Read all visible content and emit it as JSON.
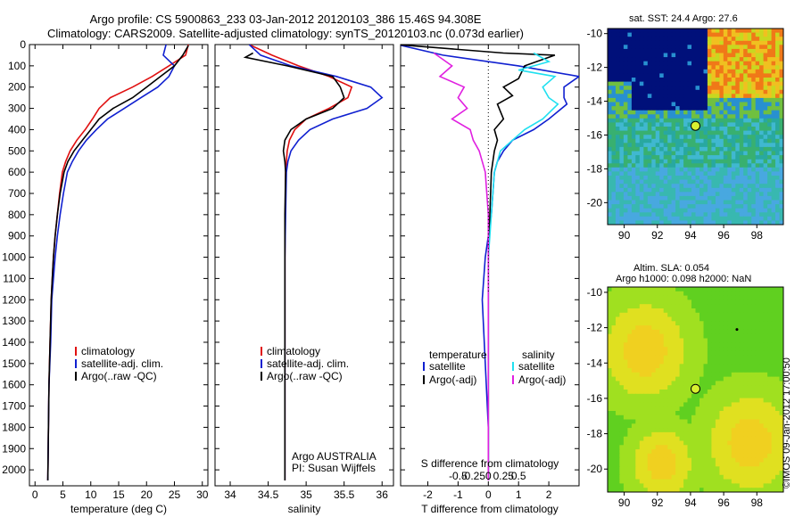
{
  "header": {
    "line1": "Argo profile: CS 5900863_233 03-Jan-2012 20120103_386 15.46S 94.308E",
    "line2": "Climatology: CARS2009. Satellite-adjusted climatology: synTS_20120103.nc (0.073d earlier)"
  },
  "colors": {
    "climatology": "#e01010",
    "satellite": "#1020d0",
    "argo": "#000000",
    "satellite_s": "#20e0f0",
    "argo_s": "#e020e0"
  },
  "chart_data": [
    {
      "type": "line",
      "name": "temperature-profile",
      "xlabel": "temperature (deg C)",
      "xlim": [
        -1,
        31
      ],
      "ylim": [
        2075,
        0
      ],
      "xticks": [
        0,
        5,
        10,
        15,
        20,
        25,
        30
      ],
      "yticks": [
        0,
        100,
        200,
        300,
        400,
        500,
        600,
        700,
        800,
        900,
        1000,
        1100,
        1200,
        1300,
        1400,
        1500,
        1600,
        1700,
        1800,
        1900,
        2000
      ],
      "legend": [
        "climatology",
        "satellite-adj. clim.",
        "Argo(..raw -QC)"
      ],
      "series": [
        {
          "name": "climatology",
          "color": "#e01010",
          "x": [
            27.5,
            27.0,
            24.0,
            21.0,
            17.5,
            13.5,
            11.5,
            10.3,
            9.0,
            7.5,
            6.3,
            5.5,
            4.9,
            4.4,
            4.0,
            3.6,
            3.3,
            3.1,
            2.9,
            2.7,
            2.5,
            2.4,
            2.3
          ],
          "y": [
            0,
            50,
            100,
            150,
            200,
            250,
            300,
            350,
            400,
            450,
            500,
            550,
            600,
            700,
            800,
            900,
            1000,
            1100,
            1200,
            1400,
            1600,
            1800,
            2050
          ]
        },
        {
          "name": "satellite-adj. clim.",
          "color": "#1020d0",
          "x": [
            23.5,
            23.0,
            25.0,
            24.0,
            22.0,
            19.0,
            16.0,
            13.0,
            11.0,
            9.2,
            7.8,
            6.7,
            5.8,
            5.1,
            4.5,
            4.0,
            3.6,
            3.3,
            3.0,
            2.8,
            2.5,
            2.4,
            2.3
          ],
          "y": [
            0,
            50,
            100,
            150,
            200,
            250,
            300,
            350,
            400,
            450,
            500,
            550,
            600,
            700,
            800,
            900,
            1000,
            1100,
            1200,
            1400,
            1600,
            1800,
            2050
          ]
        },
        {
          "name": "Argo(..raw -QC)",
          "color": "#000000",
          "x": [
            27.5,
            26.5,
            25.0,
            22.5,
            20.0,
            17.5,
            14.0,
            11.5,
            10.0,
            8.5,
            7.0,
            5.9,
            5.2,
            4.5,
            4.0,
            3.6,
            3.3,
            3.1,
            2.9,
            2.7,
            2.5,
            2.4,
            2.3
          ],
          "y": [
            5,
            50,
            100,
            150,
            200,
            250,
            300,
            350,
            400,
            450,
            500,
            550,
            600,
            700,
            800,
            900,
            1000,
            1100,
            1200,
            1400,
            1600,
            1800,
            2050
          ]
        }
      ]
    },
    {
      "type": "line",
      "name": "salinity-profile",
      "xlabel": "salinity",
      "xlim": [
        33.8,
        36.15
      ],
      "ylim": [
        2075,
        0
      ],
      "xticks": [
        34,
        34.5,
        35,
        35.5,
        36
      ],
      "xticklabels": [
        "34",
        "34.5",
        "35",
        "35.5",
        "36"
      ],
      "legend": [
        "climatology",
        "satellite-adj. clim.",
        "Argo(..raw -QC)"
      ],
      "annotation": [
        "Argo AUSTRALIA",
        "PI: Susan Wijffels"
      ],
      "series": [
        {
          "name": "climatology",
          "color": "#e01010",
          "x": [
            34.25,
            34.55,
            34.9,
            35.3,
            35.6,
            35.55,
            35.3,
            35.0,
            34.85,
            34.78,
            34.75,
            34.74,
            34.73,
            34.725,
            34.72,
            34.72,
            34.72
          ],
          "y": [
            0,
            50,
            100,
            150,
            200,
            250,
            300,
            350,
            400,
            450,
            500,
            550,
            600,
            800,
            1000,
            1500,
            2050
          ]
        },
        {
          "name": "satellite-adj. clim.",
          "color": "#1020d0",
          "x": [
            34.25,
            34.4,
            34.8,
            35.4,
            35.85,
            36.0,
            35.8,
            35.35,
            35.05,
            34.9,
            34.8,
            34.76,
            34.74,
            34.73,
            34.72,
            34.72,
            34.72
          ],
          "y": [
            0,
            50,
            100,
            150,
            200,
            250,
            300,
            350,
            400,
            450,
            500,
            550,
            600,
            800,
            1000,
            1500,
            2050
          ]
        },
        {
          "name": "Argo(..raw -QC)",
          "color": "#000000",
          "x": [
            34.3,
            34.2,
            34.75,
            35.35,
            35.45,
            35.5,
            35.35,
            35.0,
            34.8,
            34.72,
            34.7,
            34.72,
            34.73,
            34.72,
            34.72,
            34.72,
            34.72
          ],
          "y": [
            40,
            60,
            100,
            150,
            200,
            250,
            300,
            350,
            400,
            450,
            500,
            550,
            600,
            800,
            1000,
            1500,
            2050
          ]
        }
      ]
    },
    {
      "type": "line",
      "name": "difference-profile",
      "xlabel": "T difference from climatology",
      "xlabel_top": "S difference from climatology",
      "xlim": [
        -2.9,
        3.0
      ],
      "ylim": [
        2075,
        0
      ],
      "xticks": [
        -2,
        -1,
        0,
        1,
        2
      ],
      "top_ticks": [
        -0.5,
        -0.25,
        0,
        0.25,
        0.5
      ],
      "top_ticklabels": [
        "-0.5",
        "-0.25",
        "0",
        "0.25",
        "0.5"
      ],
      "legend_headers": [
        "temperature",
        "salinity"
      ],
      "legend": [
        "satellite",
        "Argo(-adj)",
        "satellite",
        "Argo(-adj)"
      ],
      "series": [
        {
          "name": "satellite",
          "group": "temperature",
          "color": "#1020d0",
          "x": [
            -3.0,
            -1.5,
            1.0,
            3.0,
            2.5,
            2.5,
            2.6,
            2.0,
            1.5,
            0.8,
            0.5,
            0.3,
            0.2,
            0.1,
            -0.1,
            -0.2,
            -0.1,
            0.0,
            0.0
          ],
          "y": [
            0,
            50,
            100,
            150,
            200,
            250,
            280,
            350,
            400,
            450,
            500,
            550,
            600,
            800,
            1000,
            1200,
            1500,
            1800,
            2050
          ]
        },
        {
          "name": "Argo(-adj)",
          "group": "temperature",
          "color": "#000000",
          "x": [
            -3.0,
            0.5,
            2.2,
            1.2,
            1.0,
            0.5,
            0.8,
            0.3,
            0.5,
            0.2,
            0.3,
            0.2,
            0.1,
            0.05,
            0.0,
            0.0
          ],
          "y": [
            0,
            40,
            50,
            100,
            160,
            200,
            240,
            280,
            350,
            400,
            450,
            500,
            600,
            800,
            1000,
            2050
          ]
        },
        {
          "name": "satellite",
          "group": "salinity",
          "color": "#20e0f0",
          "x": [
            1.5,
            2.0,
            1.0,
            2.2,
            1.8,
            2.0,
            2.3,
            1.8,
            1.2,
            0.8,
            0.4,
            0.2,
            0.1,
            0.0,
            0.0
          ],
          "y": [
            40,
            80,
            120,
            150,
            200,
            250,
            280,
            350,
            400,
            450,
            500,
            600,
            800,
            1000,
            2050
          ]
        },
        {
          "name": "Argo(-adj)",
          "group": "salinity",
          "color": "#e020e0",
          "x": [
            -1.8,
            -1.2,
            -1.6,
            -0.8,
            -1.0,
            -0.7,
            -1.2,
            -0.6,
            -0.5,
            -0.3,
            -0.2,
            -0.1,
            0.0,
            0.0,
            0.0
          ],
          "y": [
            40,
            100,
            150,
            200,
            250,
            300,
            350,
            400,
            450,
            500,
            550,
            600,
            800,
            1000,
            2050
          ]
        }
      ]
    },
    {
      "type": "heatmap",
      "name": "sst-map",
      "title": "sat. SST: 24.4  Argo: 27.6",
      "xlim": [
        89,
        99.6
      ],
      "ylim": [
        -21.3,
        -9.7
      ],
      "xticks": [
        90,
        92,
        94,
        96,
        98
      ],
      "yticks": [
        -10,
        -12,
        -14,
        -16,
        -18,
        -20
      ],
      "marker": {
        "lon": 94.3,
        "lat": -15.46
      }
    },
    {
      "type": "heatmap",
      "name": "sla-map",
      "title": [
        "Altim. SLA: 0.054",
        "Argo h1000: 0.098  h2000: NaN"
      ],
      "xlim": [
        89,
        99.6
      ],
      "ylim": [
        -21.3,
        -9.7
      ],
      "xticks": [
        90,
        92,
        94,
        96,
        98
      ],
      "yticks": [
        -10,
        -12,
        -14,
        -16,
        -18,
        -20
      ],
      "marker": {
        "lon": 94.3,
        "lat": -15.46
      },
      "point": {
        "lon": 96.8,
        "lat": -12.1
      }
    }
  ],
  "footer": "©IMOS 09-Jan-2012 17:00:50"
}
